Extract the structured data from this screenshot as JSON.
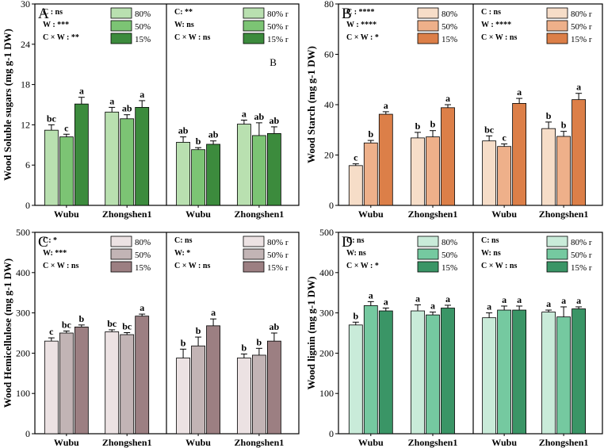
{
  "chart_data": [
    {
      "panel": "A",
      "type": "bar",
      "ylabel": "Wood Soluble sugars (mg g-1 DW)",
      "ylim": [
        0,
        30
      ],
      "yticks": [
        0,
        6,
        12,
        18,
        24,
        30
      ],
      "categories": [
        "Wubu",
        "Zhongshen1"
      ],
      "colors": [
        "#b9e0b0",
        "#7cc474",
        "#3c8b3d"
      ],
      "sub_panels": [
        {
          "legend": [
            "80%",
            "50%",
            "15%"
          ],
          "stats": [
            "C : ns",
            "W : ***",
            "C × W : **"
          ],
          "annotation": "",
          "series": [
            {
              "name": "80%",
              "values": [
                11.2,
                13.9
              ],
              "errors": [
                0.8,
                0.7
              ],
              "letters": [
                "bc",
                "a"
              ]
            },
            {
              "name": "50%",
              "values": [
                10.2,
                12.9
              ],
              "errors": [
                0.4,
                0.6
              ],
              "letters": [
                "c",
                "ab"
              ]
            },
            {
              "name": "15%",
              "values": [
                15.1,
                14.6
              ],
              "errors": [
                1.0,
                1.0
              ],
              "letters": [
                "a",
                "a"
              ]
            }
          ]
        },
        {
          "legend": [
            "80% r",
            "50% r",
            "15% r"
          ],
          "stats": [
            "C: **",
            "W: ns",
            "C × W : ns"
          ],
          "annotation": "B",
          "series": [
            {
              "name": "80% r",
              "values": [
                9.4,
                12.1
              ],
              "errors": [
                0.8,
                0.6
              ],
              "letters": [
                "ab",
                "a"
              ]
            },
            {
              "name": "50% r",
              "values": [
                8.3,
                10.4
              ],
              "errors": [
                0.3,
                1.9
              ],
              "letters": [
                "b",
                "ab"
              ]
            },
            {
              "name": "15% r",
              "values": [
                9.1,
                10.7
              ],
              "errors": [
                0.5,
                1.0
              ],
              "letters": [
                "ab",
                "ab"
              ]
            }
          ]
        }
      ]
    },
    {
      "panel": "B",
      "type": "bar",
      "ylabel": "Wood Starch (mg g-1 DW)",
      "ylim": [
        0,
        80
      ],
      "yticks": [
        0,
        20,
        40,
        60,
        80
      ],
      "categories": [
        "Wubu",
        "Zhongshen1"
      ],
      "colors": [
        "#f6ddc8",
        "#eeb08a",
        "#dc7f48"
      ],
      "sub_panels": [
        {
          "legend": [
            "80%",
            "50%",
            "15%"
          ],
          "stats": [
            "C : ****",
            "W : ****",
            "C × W : *"
          ],
          "annotation": "",
          "series": [
            {
              "name": "80%",
              "values": [
                15.8,
                26.8
              ],
              "errors": [
                0.7,
                2.2
              ],
              "letters": [
                "c",
                "b"
              ]
            },
            {
              "name": "50%",
              "values": [
                24.8,
                27.2
              ],
              "errors": [
                1.0,
                2.5
              ],
              "letters": [
                "b",
                "b"
              ]
            },
            {
              "name": "15%",
              "values": [
                36.2,
                38.8
              ],
              "errors": [
                1.0,
                1.2
              ],
              "letters": [
                "a",
                "a"
              ]
            }
          ]
        },
        {
          "legend": [
            "80% r",
            "50% r",
            "15% r"
          ],
          "stats": [
            "C : ns",
            "W : ****",
            "C × W : ns"
          ],
          "annotation": "",
          "series": [
            {
              "name": "80% r",
              "values": [
                25.6,
                30.5
              ],
              "errors": [
                2.0,
                2.6
              ],
              "letters": [
                "bc",
                "b"
              ]
            },
            {
              "name": "50% r",
              "values": [
                23.4,
                27.4
              ],
              "errors": [
                1.0,
                2.0
              ],
              "letters": [
                "c",
                "b"
              ]
            },
            {
              "name": "15% r",
              "values": [
                40.5,
                42.0
              ],
              "errors": [
                2.0,
                2.5
              ],
              "letters": [
                "a",
                "a"
              ]
            }
          ]
        }
      ]
    },
    {
      "panel": "C",
      "type": "bar",
      "ylabel": "Wood Hemicellulose (mg g-1 DW)",
      "ylim": [
        0,
        500
      ],
      "yticks": [
        0,
        100,
        200,
        300,
        400,
        500
      ],
      "categories": [
        "Wubu",
        "Zhongshen1"
      ],
      "colors": [
        "#ece2e3",
        "#c2b4b5",
        "#9c7f82"
      ],
      "sub_panels": [
        {
          "legend": [
            "80%",
            "50%",
            "15%"
          ],
          "stats": [
            "C: *",
            "W: ***",
            "C × W : ns"
          ],
          "annotation": "",
          "series": [
            {
              "name": "80%",
              "values": [
                230,
                253
              ],
              "errors": [
                8,
                5
              ],
              "letters": [
                "c",
                "bc"
              ]
            },
            {
              "name": "50%",
              "values": [
                250,
                246
              ],
              "errors": [
                5,
                5
              ],
              "letters": [
                "bc",
                "bc"
              ]
            },
            {
              "name": "15%",
              "values": [
                265,
                292
              ],
              "errors": [
                5,
                5
              ],
              "letters": [
                "b",
                "a"
              ]
            }
          ]
        },
        {
          "legend": [
            "80% r",
            "50% r",
            "15% r"
          ],
          "stats": [
            "C: ns",
            "W: *",
            "C × W : ns"
          ],
          "annotation": "",
          "series": [
            {
              "name": "80% r",
              "values": [
                188,
                188
              ],
              "errors": [
                22,
                10
              ],
              "letters": [
                "b",
                "b"
              ]
            },
            {
              "name": "50% r",
              "values": [
                218,
                195
              ],
              "errors": [
                22,
                17
              ],
              "letters": [
                "b",
                "b"
              ]
            },
            {
              "name": "15% r",
              "values": [
                268,
                230
              ],
              "errors": [
                17,
                20
              ],
              "letters": [
                "a",
                "ab"
              ]
            }
          ]
        }
      ]
    },
    {
      "panel": "D",
      "type": "bar",
      "ylabel": "Wood lignin (mg g-1 DW)",
      "ylim": [
        0,
        500
      ],
      "yticks": [
        0,
        100,
        200,
        300,
        400,
        500
      ],
      "categories": [
        "Wubu",
        "Zhongshen1"
      ],
      "colors": [
        "#c9ebd9",
        "#75c9a0",
        "#3a9566"
      ],
      "sub_panels": [
        {
          "legend": [
            "80%",
            "50%",
            "15%"
          ],
          "stats": [
            "C: ns",
            "W: ns",
            "C × W : *"
          ],
          "annotation": "",
          "series": [
            {
              "name": "80%",
              "values": [
                270,
                305
              ],
              "errors": [
                7,
                15
              ],
              "letters": [
                "b",
                "a"
              ]
            },
            {
              "name": "50%",
              "values": [
                318,
                295
              ],
              "errors": [
                10,
                7
              ],
              "letters": [
                "a",
                "a"
              ]
            },
            {
              "name": "15%",
              "values": [
                305,
                312
              ],
              "errors": [
                7,
                7
              ],
              "letters": [
                "a",
                "a"
              ]
            }
          ]
        },
        {
          "legend": [
            "80% r",
            "50% r",
            "15% r"
          ],
          "stats": [
            "C: ns",
            "W: ns",
            "C × W : ns"
          ],
          "annotation": "",
          "series": [
            {
              "name": "80% r",
              "values": [
                288,
                302
              ],
              "errors": [
                12,
                5
              ],
              "letters": [
                "a",
                "a"
              ]
            },
            {
              "name": "50% r",
              "values": [
                307,
                290
              ],
              "errors": [
                10,
                25
              ],
              "letters": [
                "a",
                "a"
              ]
            },
            {
              "name": "15% r",
              "values": [
                307,
                310
              ],
              "errors": [
                10,
                5
              ],
              "letters": [
                "a",
                "a"
              ]
            }
          ]
        }
      ]
    }
  ]
}
